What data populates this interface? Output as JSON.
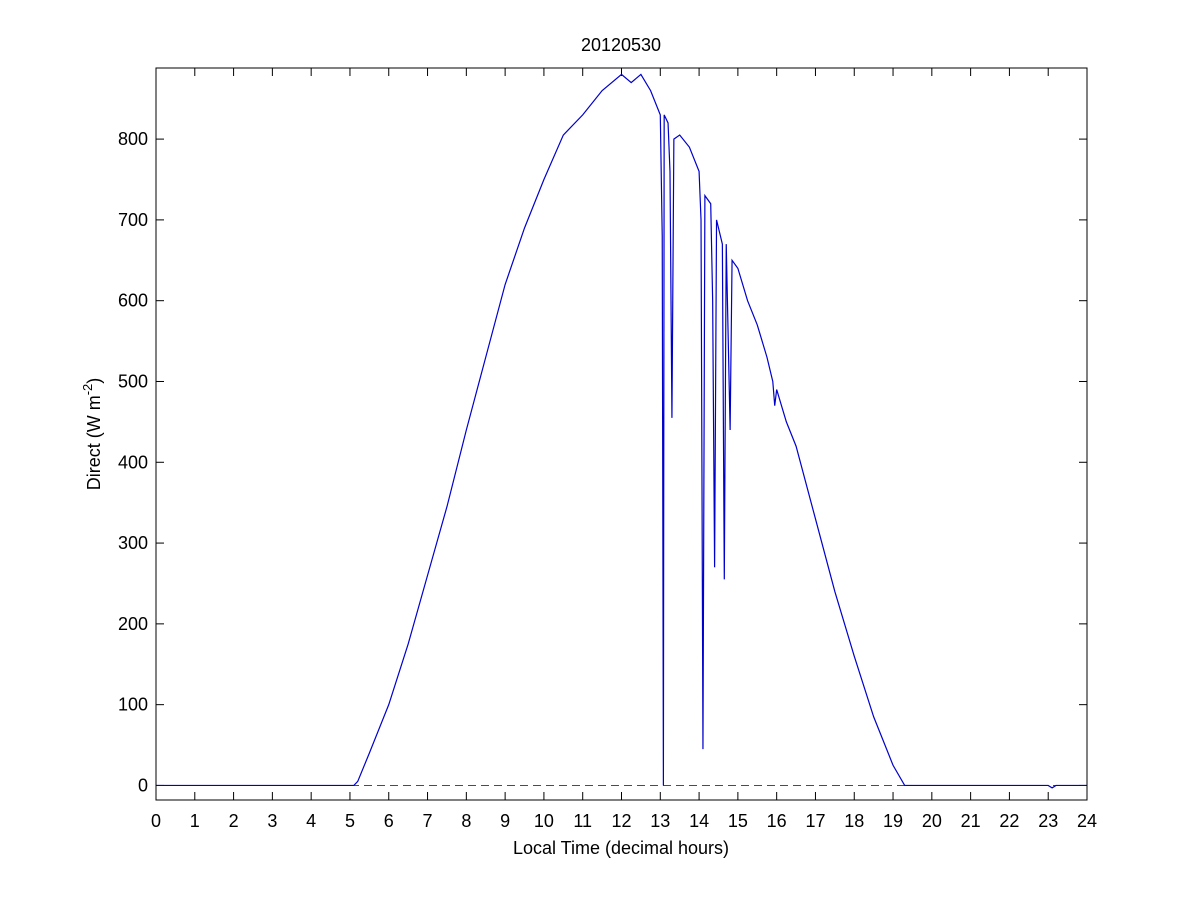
{
  "chart_data": {
    "type": "line",
    "title": "20120530",
    "x_label": "Local Time (decimal hours)",
    "y_label": "Direct (W m",
    "y_label_sup": "-2",
    "y_label_end": ")",
    "xlim": [
      0,
      24
    ],
    "ylim": [
      -18,
      888
    ],
    "xticks": [
      0,
      1,
      2,
      3,
      4,
      5,
      6,
      7,
      8,
      9,
      10,
      11,
      12,
      13,
      14,
      15,
      16,
      17,
      18,
      19,
      20,
      21,
      22,
      23,
      24
    ],
    "yticks": [
      0,
      100,
      200,
      300,
      400,
      500,
      600,
      700,
      800
    ],
    "hline": {
      "value": 0,
      "color": "#ff0000",
      "style": "dashed"
    },
    "series": [
      {
        "name": "Direct",
        "color": "#0000cc",
        "x": [
          0,
          5.1,
          5.2,
          5.5,
          6,
          6.5,
          7,
          7.5,
          8,
          8.5,
          9,
          9.5,
          10,
          10.5,
          11,
          11.5,
          12,
          12.25,
          12.5,
          12.75,
          13,
          13.05,
          13.08,
          13.1,
          13.2,
          13.25,
          13.3,
          13.35,
          13.5,
          13.75,
          14,
          14.05,
          14.1,
          14.15,
          14.3,
          14.35,
          14.4,
          14.45,
          14.6,
          14.65,
          14.7,
          14.8,
          14.85,
          15,
          15.25,
          15.5,
          15.75,
          15.9,
          15.95,
          16,
          16.25,
          16.5,
          17,
          17.5,
          18,
          18.5,
          19,
          19.3,
          23,
          23.1,
          23.2,
          24
        ],
        "values": [
          0,
          0,
          5,
          40,
          100,
          175,
          260,
          345,
          440,
          530,
          620,
          690,
          750,
          805,
          830,
          860,
          880,
          870,
          880,
          860,
          830,
          680,
          0,
          830,
          820,
          760,
          455,
          800,
          805,
          790,
          760,
          700,
          45,
          730,
          720,
          600,
          270,
          700,
          670,
          255,
          670,
          440,
          650,
          640,
          600,
          570,
          530,
          500,
          470,
          490,
          450,
          420,
          330,
          240,
          160,
          85,
          25,
          0,
          0,
          -3,
          0,
          0
        ]
      }
    ]
  }
}
